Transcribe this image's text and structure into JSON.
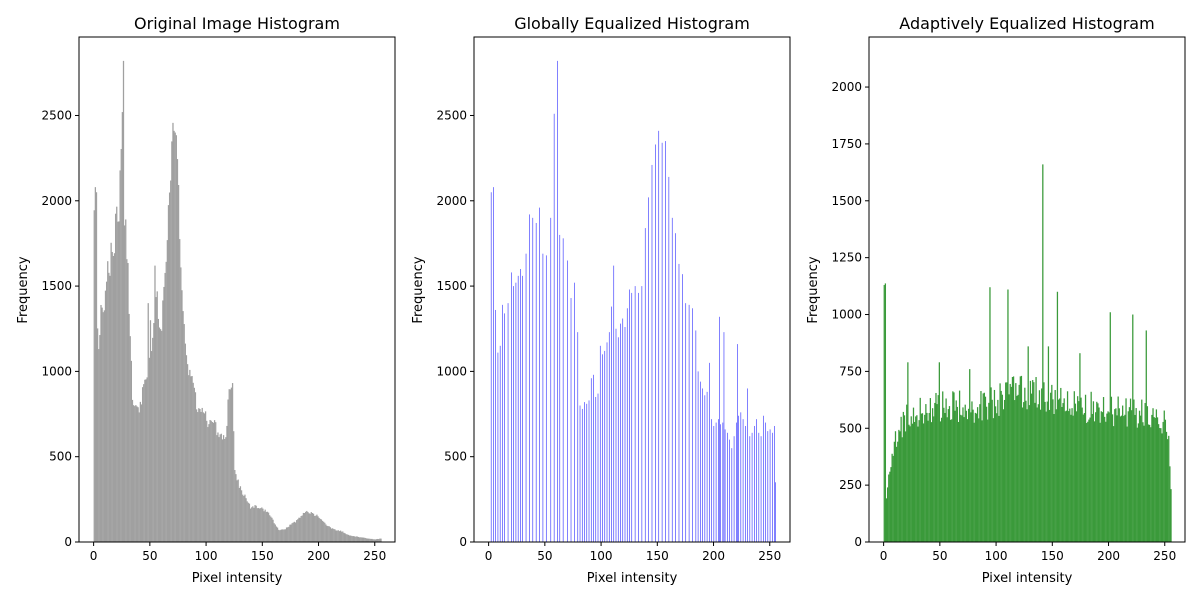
{
  "chart_data": [
    {
      "type": "bar",
      "title": "Original Image Histogram",
      "xlabel": "Pixel intensity",
      "ylabel": "Frequency",
      "xlim": [
        -13,
        268
      ],
      "ylim": [
        0,
        2960
      ],
      "xticks": [
        0,
        50,
        100,
        150,
        200,
        250
      ],
      "yticks": [
        0,
        500,
        1000,
        1500,
        2000,
        2500
      ],
      "color": "#a0a0a0",
      "profile": [
        [
          0,
          2050
        ],
        [
          2,
          1900
        ],
        [
          3,
          1250
        ],
        [
          5,
          1100
        ],
        [
          7,
          1450
        ],
        [
          9,
          1300
        ],
        [
          11,
          1550
        ],
        [
          14,
          1600
        ],
        [
          16,
          1750
        ],
        [
          18,
          1700
        ],
        [
          20,
          1900
        ],
        [
          22,
          1800
        ],
        [
          24,
          2200
        ],
        [
          25,
          2500
        ],
        [
          26,
          2800
        ],
        [
          27,
          1900
        ],
        [
          29,
          1800
        ],
        [
          31,
          1500
        ],
        [
          33,
          1100
        ],
        [
          35,
          750
        ],
        [
          37,
          820
        ],
        [
          40,
          780
        ],
        [
          43,
          850
        ],
        [
          46,
          950
        ],
        [
          50,
          1050
        ],
        [
          52,
          1200
        ],
        [
          54,
          1400
        ],
        [
          55,
          1550
        ],
        [
          57,
          1350
        ],
        [
          59,
          1250
        ],
        [
          61,
          1300
        ],
        [
          63,
          1500
        ],
        [
          65,
          1700
        ],
        [
          67,
          1950
        ],
        [
          69,
          2200
        ],
        [
          71,
          2400
        ],
        [
          73,
          2350
        ],
        [
          75,
          2100
        ],
        [
          77,
          1700
        ],
        [
          79,
          1400
        ],
        [
          81,
          1200
        ],
        [
          83,
          1050
        ],
        [
          86,
          980
        ],
        [
          89,
          880
        ],
        [
          92,
          800
        ],
        [
          95,
          750
        ],
        [
          98,
          780
        ],
        [
          101,
          700
        ],
        [
          104,
          680
        ],
        [
          107,
          700
        ],
        [
          110,
          650
        ],
        [
          113,
          620
        ],
        [
          116,
          600
        ],
        [
          118,
          650
        ],
        [
          120,
          850
        ],
        [
          122,
          950
        ],
        [
          124,
          900
        ],
        [
          125,
          450
        ],
        [
          127,
          380
        ],
        [
          130,
          320
        ],
        [
          133,
          280
        ],
        [
          136,
          250
        ],
        [
          140,
          200
        ],
        [
          145,
          210
        ],
        [
          150,
          195
        ],
        [
          155,
          175
        ],
        [
          160,
          120
        ],
        [
          165,
          70
        ],
        [
          170,
          75
        ],
        [
          175,
          100
        ],
        [
          180,
          120
        ],
        [
          185,
          160
        ],
        [
          190,
          175
        ],
        [
          195,
          165
        ],
        [
          200,
          150
        ],
        [
          205,
          110
        ],
        [
          210,
          85
        ],
        [
          215,
          70
        ],
        [
          220,
          65
        ],
        [
          225,
          45
        ],
        [
          230,
          35
        ],
        [
          235,
          30
        ],
        [
          240,
          25
        ],
        [
          245,
          20
        ],
        [
          250,
          15
        ],
        [
          255,
          20
        ]
      ],
      "peaks": [
        [
          1,
          2080
        ],
        [
          2,
          2050
        ],
        [
          25,
          2520
        ],
        [
          26,
          2820
        ],
        [
          71,
          2410
        ],
        [
          72,
          2400
        ],
        [
          54,
          1620
        ],
        [
          50,
          1300
        ],
        [
          48,
          1400
        ]
      ]
    },
    {
      "type": "bar",
      "title": "Globally Equalized Histogram",
      "xlabel": "Pixel intensity",
      "ylabel": "Frequency",
      "xlim": [
        -13,
        268
      ],
      "ylim": [
        0,
        2960
      ],
      "xticks": [
        0,
        50,
        100,
        150,
        200,
        250
      ],
      "yticks": [
        0,
        500,
        1000,
        1500,
        2000,
        2500
      ],
      "color": "#3333ff",
      "spikes": [
        [
          2,
          2050
        ],
        [
          4,
          2080
        ],
        [
          6,
          1360
        ],
        [
          8,
          1110
        ],
        [
          10,
          1150
        ],
        [
          12,
          1390
        ],
        [
          14,
          1340
        ],
        [
          17,
          1400
        ],
        [
          20,
          1580
        ],
        [
          22,
          1500
        ],
        [
          24,
          1520
        ],
        [
          26,
          1560
        ],
        [
          28,
          1600
        ],
        [
          30,
          1560
        ],
        [
          33,
          1690
        ],
        [
          36,
          1920
        ],
        [
          39,
          1900
        ],
        [
          42,
          1870
        ],
        [
          45,
          1960
        ],
        [
          48,
          1690
        ],
        [
          51,
          1680
        ],
        [
          55,
          1900
        ],
        [
          58,
          2510
        ],
        [
          61,
          2820
        ],
        [
          63,
          1800
        ],
        [
          66,
          1780
        ],
        [
          70,
          1650
        ],
        [
          73,
          1430
        ],
        [
          76,
          1520
        ],
        [
          79,
          1230
        ],
        [
          81,
          800
        ],
        [
          83,
          780
        ],
        [
          85,
          820
        ],
        [
          87,
          810
        ],
        [
          89,
          830
        ],
        [
          91,
          960
        ],
        [
          93,
          980
        ],
        [
          95,
          850
        ],
        [
          97,
          870
        ],
        [
          99,
          1150
        ],
        [
          101,
          1100
        ],
        [
          103,
          1120
        ],
        [
          105,
          1170
        ],
        [
          107,
          1230
        ],
        [
          109,
          1380
        ],
        [
          111,
          1620
        ],
        [
          113,
          1250
        ],
        [
          115,
          1200
        ],
        [
          117,
          1280
        ],
        [
          119,
          1310
        ],
        [
          121,
          1260
        ],
        [
          123,
          1370
        ],
        [
          125,
          1480
        ],
        [
          127,
          1460
        ],
        [
          130,
          1500
        ],
        [
          133,
          1460
        ],
        [
          136,
          1500
        ],
        [
          139,
          1840
        ],
        [
          142,
          2020
        ],
        [
          145,
          2210
        ],
        [
          148,
          2330
        ],
        [
          151,
          2410
        ],
        [
          154,
          2340
        ],
        [
          157,
          2350
        ],
        [
          160,
          2140
        ],
        [
          163,
          1900
        ],
        [
          166,
          1810
        ],
        [
          169,
          1630
        ],
        [
          172,
          1570
        ],
        [
          175,
          1400
        ],
        [
          178,
          1390
        ],
        [
          181,
          1370
        ],
        [
          184,
          1240
        ],
        [
          186,
          1000
        ],
        [
          188,
          940
        ],
        [
          190,
          900
        ],
        [
          192,
          860
        ],
        [
          194,
          880
        ],
        [
          196,
          820
        ],
        [
          198,
          720
        ],
        [
          200,
          680
        ],
        [
          202,
          700
        ],
        [
          204,
          720
        ],
        [
          206,
          690
        ],
        [
          208,
          700
        ],
        [
          210,
          660
        ],
        [
          212,
          640
        ],
        [
          214,
          600
        ],
        [
          216,
          550
        ],
        [
          218,
          620
        ],
        [
          220,
          700
        ],
        [
          222,
          740
        ],
        [
          224,
          760
        ],
        [
          226,
          720
        ],
        [
          228,
          680
        ],
        [
          230,
          640
        ],
        [
          232,
          620
        ],
        [
          234,
          640
        ],
        [
          236,
          680
        ],
        [
          238,
          720
        ],
        [
          240,
          640
        ],
        [
          242,
          620
        ],
        [
          244,
          680
        ],
        [
          246,
          700
        ],
        [
          248,
          650
        ],
        [
          250,
          660
        ],
        [
          252,
          640
        ],
        [
          254,
          680
        ],
        [
          255,
          350
        ]
      ],
      "tall": [
        [
          205,
          1320
        ],
        [
          209,
          1230
        ],
        [
          221,
          1160
        ],
        [
          196,
          1050
        ],
        [
          230,
          900
        ],
        [
          244,
          740
        ]
      ]
    },
    {
      "type": "bar",
      "title": "Adaptively Equalized Histogram",
      "xlabel": "Pixel intensity",
      "ylabel": "Frequency",
      "xlim": [
        -13,
        268
      ],
      "ylim": [
        0,
        2220
      ],
      "xticks": [
        0,
        50,
        100,
        150,
        200,
        250
      ],
      "yticks": [
        0,
        250,
        500,
        750,
        1000,
        1250,
        1500,
        1750,
        2000
      ],
      "color": "#3a9a3a",
      "profile": [
        [
          0,
          60
        ],
        [
          1,
          2100
        ],
        [
          2,
          180
        ],
        [
          3,
          240
        ],
        [
          5,
          300
        ],
        [
          7,
          330
        ],
        [
          9,
          400
        ],
        [
          11,
          460
        ],
        [
          13,
          500
        ],
        [
          16,
          520
        ],
        [
          20,
          540
        ],
        [
          25,
          560
        ],
        [
          30,
          570
        ],
        [
          40,
          580
        ],
        [
          50,
          600
        ],
        [
          60,
          590
        ],
        [
          70,
          600
        ],
        [
          80,
          590
        ],
        [
          90,
          600
        ],
        [
          100,
          620
        ],
        [
          110,
          640
        ],
        [
          120,
          660
        ],
        [
          130,
          650
        ],
        [
          140,
          660
        ],
        [
          150,
          640
        ],
        [
          160,
          620
        ],
        [
          170,
          600
        ],
        [
          180,
          590
        ],
        [
          190,
          590
        ],
        [
          200,
          580
        ],
        [
          210,
          570
        ],
        [
          220,
          570
        ],
        [
          230,
          560
        ],
        [
          240,
          550
        ],
        [
          250,
          540
        ],
        [
          253,
          480
        ],
        [
          254,
          450
        ],
        [
          255,
          240
        ]
      ],
      "peaks": [
        [
          141,
          1660
        ],
        [
          94,
          1120
        ],
        [
          110,
          1110
        ],
        [
          154,
          1100
        ],
        [
          201,
          1010
        ],
        [
          221,
          1000
        ],
        [
          233,
          930
        ],
        [
          174,
          830
        ],
        [
          49,
          790
        ],
        [
          21,
          790
        ],
        [
          76,
          760
        ],
        [
          128,
          860
        ],
        [
          146,
          860
        ]
      ]
    }
  ]
}
